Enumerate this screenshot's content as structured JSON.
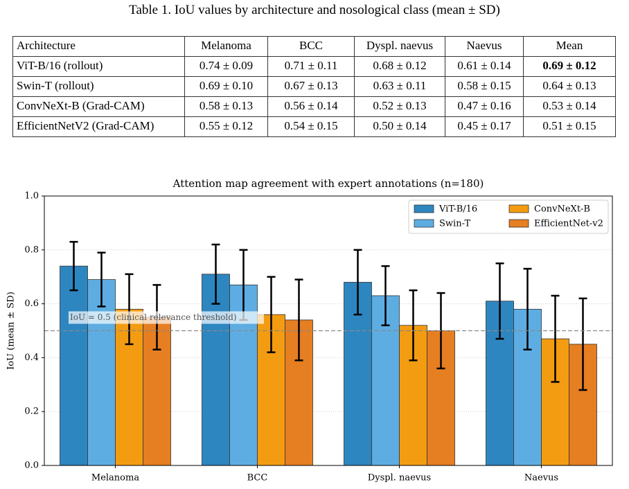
{
  "table": {
    "caption": "Table 1. IoU values by architecture and nosological class (mean ± SD)",
    "header": [
      "Architecture",
      "Melanoma",
      "BCC",
      "Dyspl. naevus",
      "Naevus",
      "Mean"
    ],
    "rows": [
      [
        "ViT-B/16 (rollout)",
        "0.74 ± 0.09",
        "0.71 ± 0.11",
        "0.68 ± 0.12",
        "0.61 ± 0.14",
        "0.69 ± 0.12"
      ],
      [
        "Swin-T (rollout)",
        "0.69 ± 0.10",
        "0.67 ± 0.13",
        "0.63 ± 0.11",
        "0.58 ± 0.15",
        "0.64 ± 0.13"
      ],
      [
        "ConvNeXt-B (Grad-CAM)",
        "0.58 ± 0.13",
        "0.56 ± 0.14",
        "0.52 ± 0.13",
        "0.47 ± 0.16",
        "0.53 ± 0.14"
      ],
      [
        "EfficientNetV2 (Grad-CAM)",
        "0.55 ± 0.12",
        "0.54 ± 0.15",
        "0.50 ± 0.14",
        "0.45 ± 0.17",
        "0.51 ± 0.15"
      ]
    ],
    "bold": [
      [
        0,
        5
      ]
    ]
  },
  "chart_data": {
    "type": "bar",
    "title": "Attention map agreement with expert annotations (n=180)",
    "ylabel": "IoU (mean ± SD)",
    "categories": [
      "Melanoma",
      "BCC",
      "Dyspl. naevus",
      "Naevus"
    ],
    "series": [
      {
        "name": "ViT-B/16",
        "color": "#2e86c1",
        "values": [
          0.74,
          0.71,
          0.68,
          0.61
        ],
        "errors": [
          0.09,
          0.11,
          0.12,
          0.14
        ]
      },
      {
        "name": "Swin-T",
        "color": "#5dade2",
        "values": [
          0.69,
          0.67,
          0.63,
          0.58
        ],
        "errors": [
          0.1,
          0.13,
          0.11,
          0.15
        ]
      },
      {
        "name": "ConvNeXt-B",
        "color": "#f39c12",
        "values": [
          0.58,
          0.56,
          0.52,
          0.47
        ],
        "errors": [
          0.13,
          0.14,
          0.13,
          0.16
        ]
      },
      {
        "name": "EfficientNet-v2",
        "color": "#e67e22",
        "values": [
          0.55,
          0.54,
          0.5,
          0.45
        ],
        "errors": [
          0.12,
          0.15,
          0.14,
          0.17
        ]
      }
    ],
    "ylim": [
      0,
      1
    ],
    "yticks": [
      {
        "value": 0,
        "label": "0.0"
      },
      0.2,
      0.4,
      0.6,
      0.8,
      {
        "value": 1,
        "label": "1.0"
      }
    ],
    "grid": true,
    "legend": "upper right",
    "threshold": {
      "value": 0.5,
      "label": "IoU = 0.5 (clinical relevance threshold)"
    }
  }
}
